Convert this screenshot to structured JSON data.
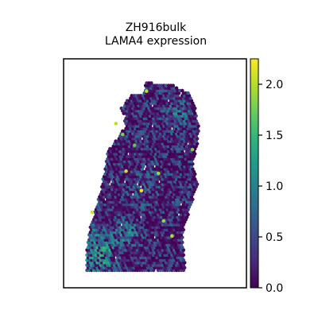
{
  "chart_data": {
    "type": "scatter",
    "title": "ZH916bulk",
    "subtitle": "LAMA4 expression",
    "xlabel": "",
    "ylabel": "",
    "marker": "hexagon",
    "colormap": {
      "name": "viridis",
      "stops": [
        "#440154",
        "#482878",
        "#3e4989",
        "#31688e",
        "#26828e",
        "#1f9e89",
        "#35b779",
        "#6ece58",
        "#b5de2b",
        "#fde725"
      ]
    },
    "colorbar": {
      "min": 0.0,
      "max": 2.25,
      "ticks": [
        0.0,
        0.5,
        1.0,
        1.5,
        2.0
      ],
      "tick_labels": [
        "0.0",
        "0.5",
        "1.0",
        "1.5",
        "2.0"
      ]
    },
    "xlim": [
      0,
      100
    ],
    "ylim": [
      0,
      100
    ],
    "tissue_outline": [
      [
        10,
        5
      ],
      [
        68,
        5
      ],
      [
        66,
        22
      ],
      [
        70,
        32
      ],
      [
        75,
        45
      ],
      [
        72,
        55
      ],
      [
        75,
        63
      ],
      [
        76,
        72
      ],
      [
        73,
        82
      ],
      [
        70,
        87
      ],
      [
        60,
        91
      ],
      [
        50,
        91
      ],
      [
        45,
        93
      ],
      [
        43,
        87
      ],
      [
        36,
        86
      ],
      [
        30,
        80
      ],
      [
        33,
        72
      ],
      [
        28,
        66
      ],
      [
        22,
        60
      ],
      [
        20,
        50
      ],
      [
        18,
        42
      ],
      [
        15,
        33
      ],
      [
        12,
        25
      ],
      [
        10,
        15
      ]
    ],
    "background_value": 0.3,
    "regions": [
      {
        "name": "lower-left",
        "cx": 18,
        "cy": 14,
        "radius": 16,
        "value": 1.3
      },
      {
        "name": "lower-middle",
        "cx": 34,
        "cy": 22,
        "radius": 10,
        "value": 1.1
      },
      {
        "name": "center",
        "cx": 45,
        "cy": 45,
        "radius": 12,
        "value": 0.7
      },
      {
        "name": "upper-right",
        "cx": 64,
        "cy": 78,
        "radius": 9,
        "value": 1.0
      },
      {
        "name": "right-edge",
        "cx": 68,
        "cy": 50,
        "radius": 5,
        "value": 0.05
      }
    ],
    "highlights": [
      {
        "x": 27,
        "y": 73,
        "value": 2.0
      },
      {
        "x": 31,
        "y": 68,
        "value": 1.8
      },
      {
        "x": 33,
        "y": 51,
        "value": 2.1
      },
      {
        "x": 42,
        "y": 42,
        "value": 2.2
      },
      {
        "x": 52,
        "y": 50,
        "value": 1.9
      },
      {
        "x": 55,
        "y": 28,
        "value": 1.9
      },
      {
        "x": 60,
        "y": 21,
        "value": 2.0
      },
      {
        "x": 13,
        "y": 32,
        "value": 2.1
      },
      {
        "x": 45,
        "y": 88,
        "value": 2.0
      },
      {
        "x": 72,
        "y": 61,
        "value": 1.8
      },
      {
        "x": 38,
        "y": 63,
        "value": 1.7
      }
    ]
  }
}
